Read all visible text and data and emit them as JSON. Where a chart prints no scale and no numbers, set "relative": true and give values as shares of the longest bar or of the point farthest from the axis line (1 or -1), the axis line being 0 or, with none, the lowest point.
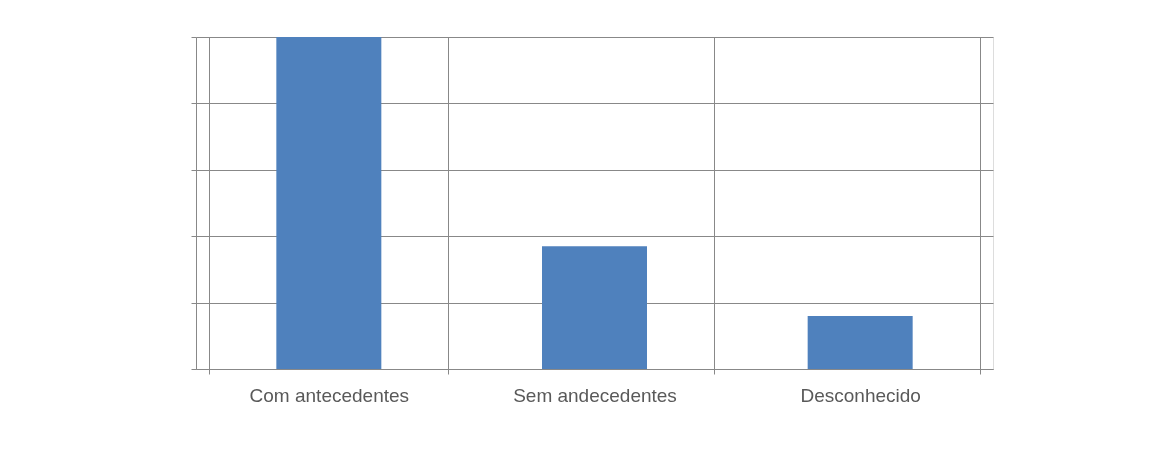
{
  "chart_data": {
    "type": "bar",
    "relative": true,
    "grid": true,
    "categories": [
      "Com antecedentes",
      "Sem andecedentes",
      "Desconhecido"
    ],
    "values": [
      1,
      0.37,
      0.16
    ],
    "color": "#4f81bd"
  }
}
